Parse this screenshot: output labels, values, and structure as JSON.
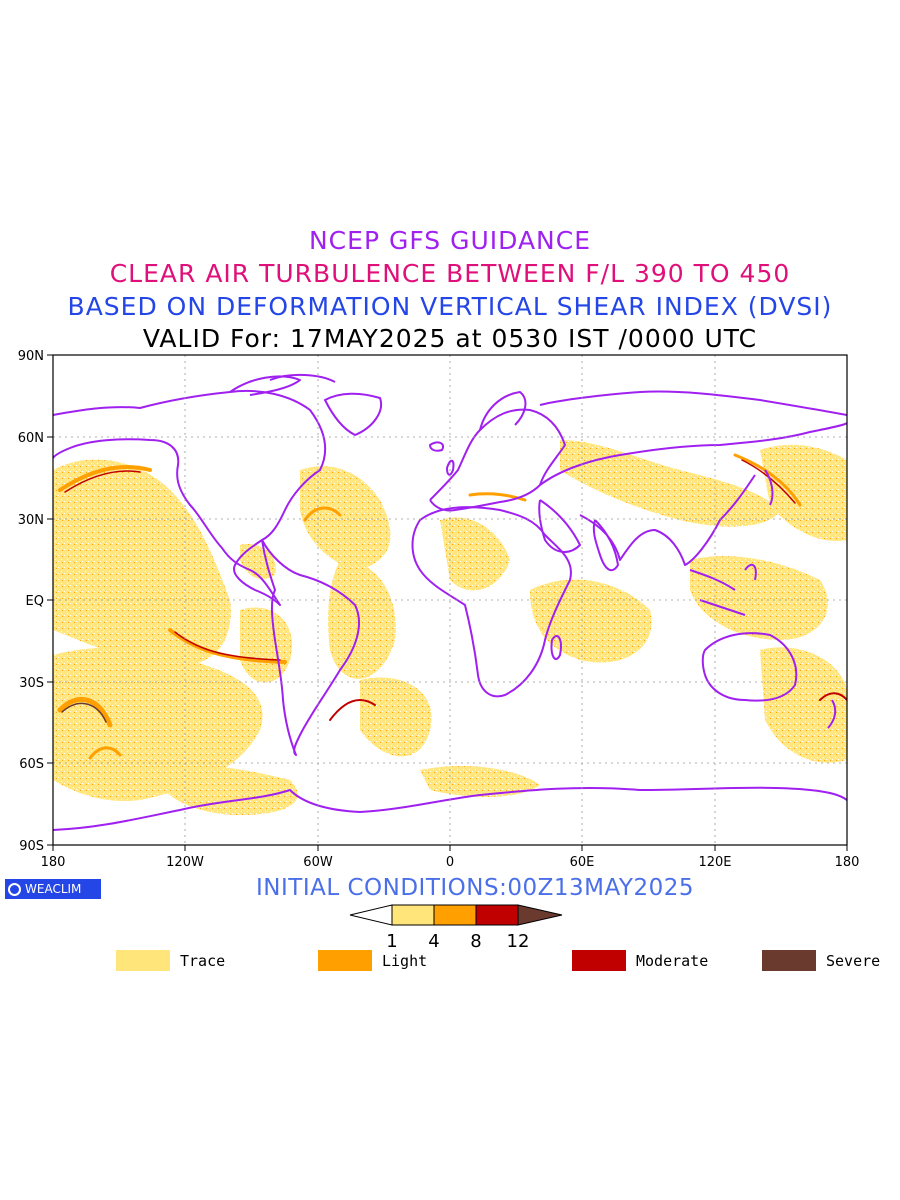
{
  "titles": {
    "line1": "NCEP GFS GUIDANCE",
    "line2": "CLEAR AIR TURBULENCE BETWEEN F/L 390 TO 450",
    "line3": "BASED ON DEFORMATION VERTICAL SHEAR INDEX (DVSI)",
    "line4": "VALID For: 17MAY2025 at 0530 IST /0000 UTC"
  },
  "axes": {
    "lat_labels": [
      "90N",
      "60N",
      "30N",
      "EQ",
      "30S",
      "60S",
      "90S"
    ],
    "lon_labels": [
      "180",
      "120W",
      "60W",
      "0",
      "60E",
      "120E",
      "180"
    ]
  },
  "logo": {
    "text": "WEACLIM"
  },
  "initial_conditions": "INITIAL CONDITIONS:00Z13MAY2025",
  "colorbar": {
    "ticks": [
      "1",
      "4",
      "8",
      "12"
    ],
    "colors": [
      "#ffffff",
      "#ffe57a",
      "#ffa000",
      "#c00000",
      "#6b3a2e"
    ]
  },
  "legend": [
    {
      "label": "Trace",
      "color": "#ffe57a"
    },
    {
      "label": "Light",
      "color": "#ffa000"
    },
    {
      "label": "Moderate",
      "color": "#c00000"
    },
    {
      "label": "Severe",
      "color": "#6b3a2e"
    }
  ],
  "colors": {
    "coast": "#a020f0",
    "trace": "#ffe57a",
    "light": "#ffa000",
    "moderate": "#c00000",
    "severe": "#6b3a2e"
  }
}
